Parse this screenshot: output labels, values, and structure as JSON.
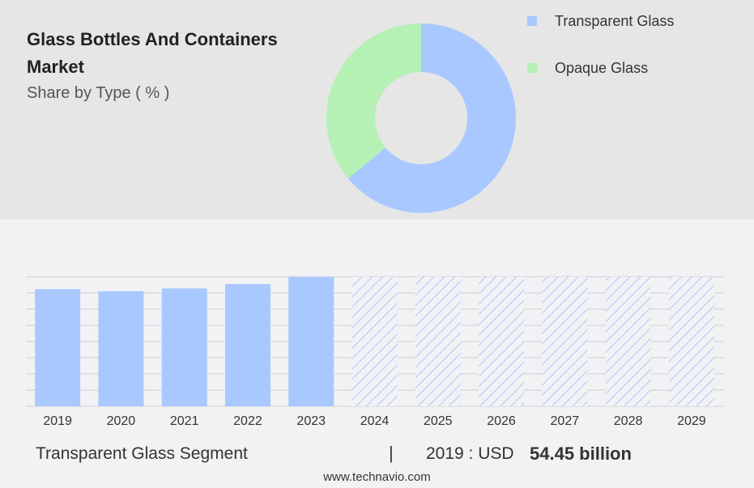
{
  "header": {
    "title": "Glass Bottles And Containers Market",
    "subtitle": "Share by Type ( % )"
  },
  "legend": [
    {
      "label": "Transparent Glass",
      "color": "#a9c8ff"
    },
    {
      "label": "Opaque Glass",
      "color": "#b5f0b5"
    }
  ],
  "footer": {
    "segment": "Transparent Glass Segment",
    "separator": "|",
    "year_label": "2019 : USD",
    "value": "54.45 billion",
    "source": "www.technavio.com"
  },
  "chart_data": [
    {
      "type": "pie",
      "donut": true,
      "categories": [
        "Transparent Glass",
        "Opaque Glass"
      ],
      "values": [
        64,
        36
      ],
      "colors": [
        "#a9c8ff",
        "#b5f0b5"
      ]
    },
    {
      "type": "bar",
      "categories": [
        "2019",
        "2020",
        "2021",
        "2022",
        "2023",
        "2024",
        "2025",
        "2026",
        "2027",
        "2028",
        "2029"
      ],
      "values": [
        54.45,
        53.5,
        54.8,
        56.8,
        60.2,
        60.2,
        60.2,
        60.2,
        60.2,
        60.2,
        60.2
      ],
      "forecast": [
        false,
        false,
        false,
        false,
        false,
        true,
        true,
        true,
        true,
        true,
        true
      ],
      "color": "#a9c8ff",
      "ylim": [
        0,
        60.2
      ],
      "grid": true
    }
  ]
}
